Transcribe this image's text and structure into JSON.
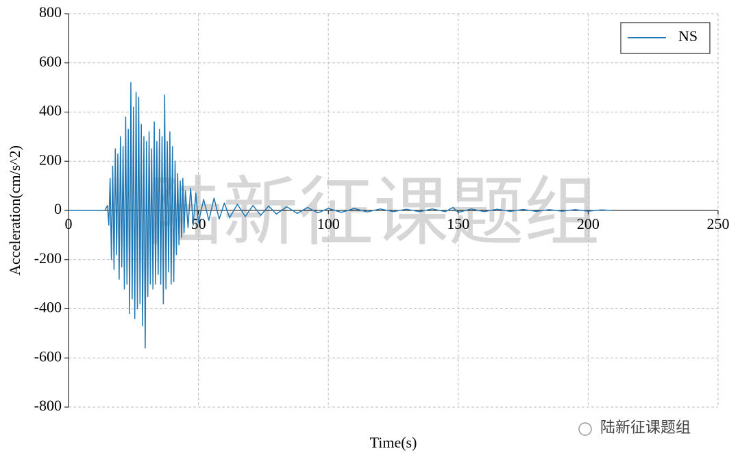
{
  "chart_data": {
    "type": "line",
    "xlabel": "Time(s)",
    "ylabel": "Acceleration(cm/s^2)",
    "watermark": "陆新征课题组",
    "footer_mark": "陆新征课题组",
    "xlim": [
      0,
      250
    ],
    "xticks": [
      0,
      50,
      100,
      150,
      200,
      250
    ],
    "ylim": [
      -800,
      800
    ],
    "yticks": [
      -800,
      -600,
      -400,
      -200,
      0,
      200,
      400,
      600,
      800
    ],
    "grid": true,
    "legend": "upper right",
    "x": [
      0,
      5,
      10,
      14,
      15,
      15.5,
      16,
      16.5,
      17,
      17.5,
      18,
      18.5,
      19,
      19.5,
      20,
      20.5,
      21,
      21.5,
      22,
      22.5,
      23,
      23.5,
      24,
      24.5,
      25,
      25.5,
      26,
      26.5,
      27,
      27.5,
      28,
      28.5,
      29,
      29.5,
      30,
      30.5,
      31,
      31.5,
      32,
      32.5,
      33,
      33.5,
      34,
      34.5,
      35,
      35.5,
      36,
      36.5,
      37,
      37.5,
      38,
      38.5,
      39,
      39.5,
      40,
      40.5,
      41,
      41.5,
      42,
      42.5,
      43,
      43.5,
      44,
      44.5,
      45,
      46,
      47,
      48,
      49,
      50,
      52,
      54,
      56,
      58,
      60,
      62,
      65,
      68,
      71,
      74,
      77,
      80,
      84,
      88,
      92,
      96,
      100,
      105,
      110,
      115,
      120,
      125,
      130,
      135,
      140,
      145,
      148,
      150,
      155,
      160,
      165,
      170,
      175,
      180,
      185,
      190,
      195,
      200,
      205,
      209
    ],
    "series": [
      {
        "name": "NS",
        "color": "#1f77b4",
        "values": [
          0,
          0,
          0,
          0,
          20,
          -60,
          130,
          -200,
          180,
          -240,
          250,
          -180,
          230,
          -280,
          300,
          -230,
          260,
          -320,
          380,
          -300,
          330,
          -420,
          520,
          -360,
          420,
          -440,
          480,
          -400,
          460,
          -380,
          350,
          -470,
          300,
          -560,
          280,
          -350,
          320,
          -300,
          250,
          -320,
          360,
          -300,
          280,
          -260,
          330,
          -300,
          300,
          -380,
          470,
          -320,
          280,
          -250,
          320,
          -300,
          260,
          -290,
          200,
          -180,
          150,
          -140,
          120,
          -110,
          130,
          -90,
          80,
          -70,
          90,
          -60,
          70,
          -50,
          45,
          -40,
          50,
          -35,
          30,
          -30,
          25,
          -25,
          20,
          -20,
          18,
          -15,
          15,
          -12,
          12,
          -10,
          8,
          -8,
          8,
          -6,
          6,
          -5,
          5,
          -5,
          6,
          -5,
          12,
          -8,
          6,
          -5,
          5,
          -4,
          4,
          -4,
          3,
          -3,
          3,
          -3,
          2,
          0
        ]
      }
    ]
  }
}
